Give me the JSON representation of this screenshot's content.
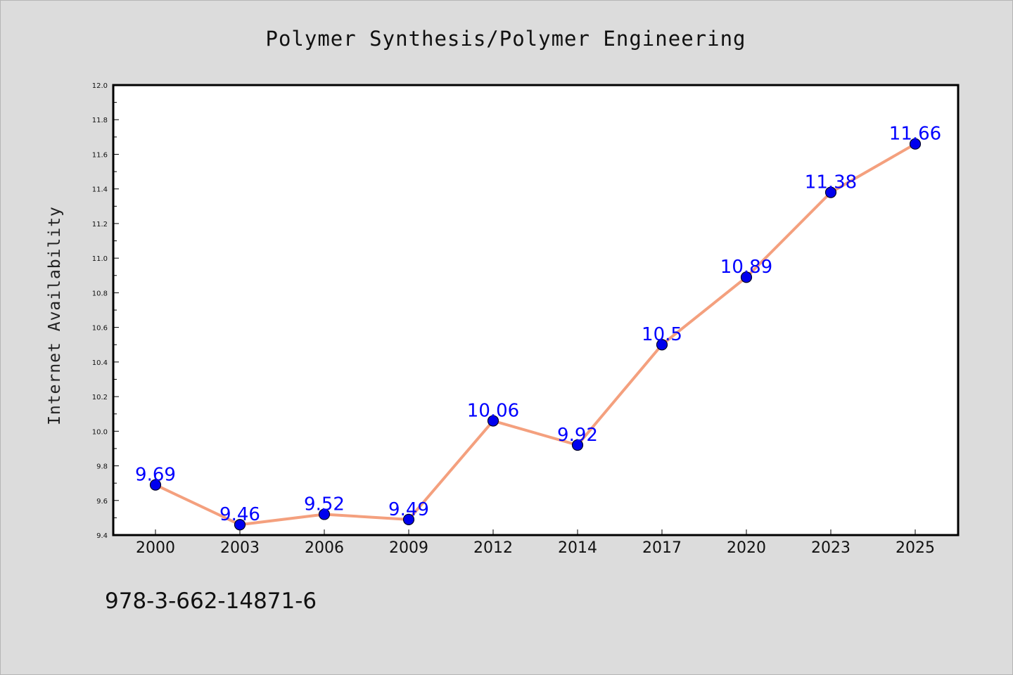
{
  "chart_data": {
    "type": "line",
    "title": "Polymer Synthesis/Polymer Engineering",
    "xlabel": "",
    "ylabel": "Internet Availability",
    "categories": [
      "2000",
      "2003",
      "2006",
      "2009",
      "2012",
      "2014",
      "2017",
      "2020",
      "2023",
      "2025"
    ],
    "series": [
      {
        "values": [
          9.69,
          9.46,
          9.52,
          9.49,
          10.06,
          9.92,
          10.5,
          10.89,
          11.38,
          11.66
        ],
        "line_color": "#f4a07e",
        "marker_color": "#0000ee"
      }
    ],
    "data_labels": [
      "9.69",
      "9.46",
      "9.52",
      "9.49",
      "10.06",
      "9.92",
      "10.5",
      "10.89",
      "11.38",
      "11.66"
    ],
    "ylim": [
      9.4,
      12.0
    ],
    "yticks": [
      "9.4",
      "9.6",
      "9.8",
      "10.0",
      "10.2",
      "10.4",
      "10.6",
      "10.8",
      "11.0",
      "11.2",
      "11.4",
      "11.6",
      "11.8",
      "12.0"
    ],
    "grid": false,
    "legend": "none"
  },
  "footer_text": "978-3-662-14871-6"
}
